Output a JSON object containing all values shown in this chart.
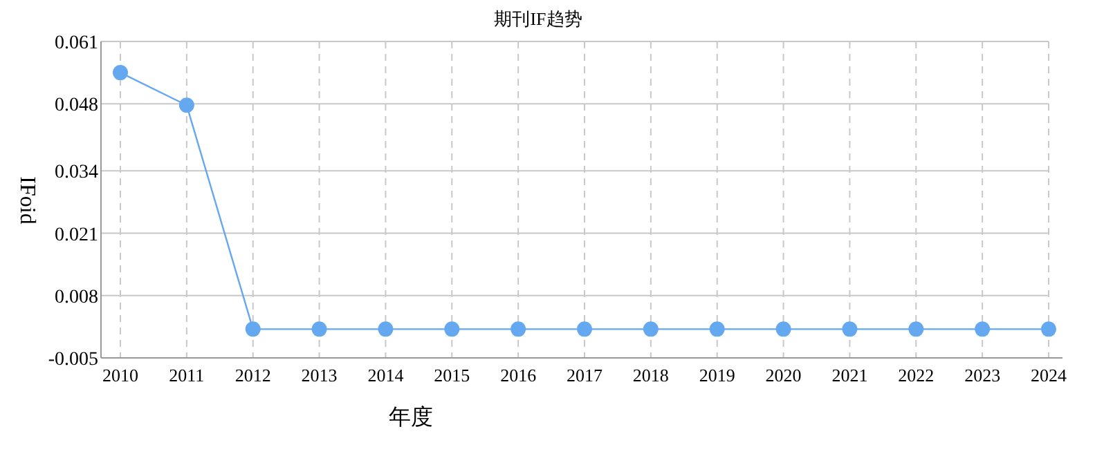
{
  "chart_data": {
    "type": "line",
    "title": "期刊IF趋势",
    "xlabel": "年度",
    "ylabel": "IFoid",
    "categories": [
      "2010",
      "2011",
      "2012",
      "2013",
      "2014",
      "2015",
      "2016",
      "2017",
      "2018",
      "2019",
      "2020",
      "2021",
      "2022",
      "2023",
      "2024"
    ],
    "series": [
      {
        "color": "#64a8f0",
        "values": [
          0.0545,
          0.0477,
          0.001,
          0.001,
          0.001,
          0.001,
          0.001,
          0.001,
          0.001,
          0.001,
          0.001,
          0.001,
          0.001,
          0.001,
          0.001
        ]
      }
    ],
    "ylim": [
      -0.005,
      0.061
    ],
    "yticks": [
      -0.005,
      0.008,
      0.021,
      0.034,
      0.048,
      0.061
    ],
    "grid": true,
    "marker": "circle",
    "line_style": "solid"
  }
}
